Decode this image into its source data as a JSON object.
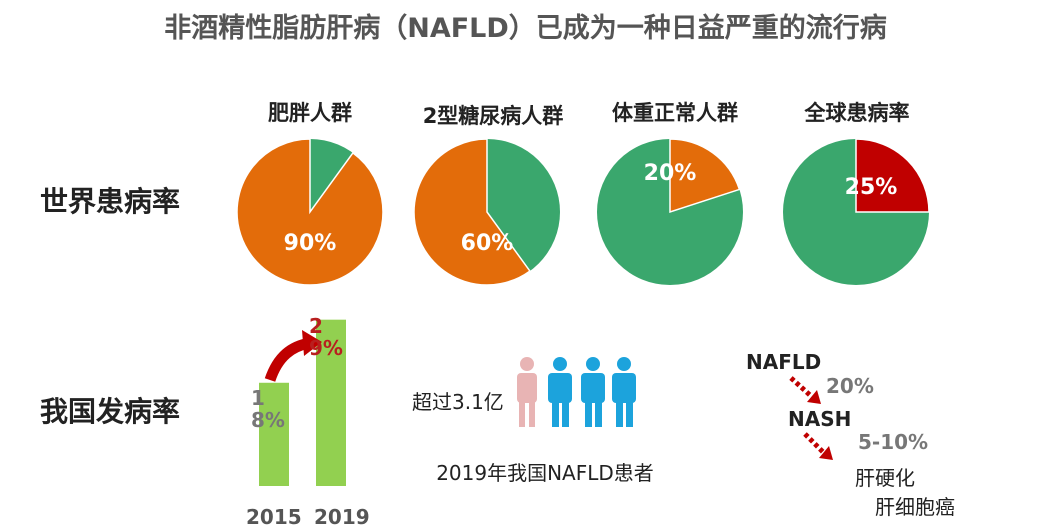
{
  "title": "非酒精性脂肪肝病（NAFLD）已成为一种日益严重的流行病",
  "rows": {
    "world": "世界患病率",
    "china": "我国发病率"
  },
  "colors": {
    "orange": "#e36c0a",
    "green": "#3aa76d",
    "red": "#c00000",
    "bar_green": "#92d050",
    "person_blue": "#1ca3dc",
    "person_pink": "#e8b4b4"
  },
  "pies": [
    {
      "label": "肥胖人群",
      "value": 90,
      "text": "90%",
      "color": "#e36c0a"
    },
    {
      "label": "2型糖尿病人群",
      "value": 60,
      "text": "60%",
      "color": "#e36c0a"
    },
    {
      "label": "体重正常人群",
      "value": 20,
      "text": "20%",
      "color": "#e36c0a"
    },
    {
      "label": "全球患病率",
      "value": 25,
      "text": "25%",
      "color": "#c00000"
    }
  ],
  "chart_data": {
    "type": "bar",
    "categories": [
      "2015",
      "2019"
    ],
    "values": [
      18,
      29
    ],
    "value_labels": [
      "18%",
      "29%"
    ]
  },
  "people": {
    "count_text": "超过3.1亿",
    "caption": "2019年我国NAFLD患者",
    "icon": "person-icon"
  },
  "flow": {
    "stage1": "NAFLD",
    "rate1": "20%",
    "stage2": "NASH",
    "rate2": "5-10%",
    "outcome1": "肝硬化",
    "outcome2": "肝细胞癌"
  }
}
